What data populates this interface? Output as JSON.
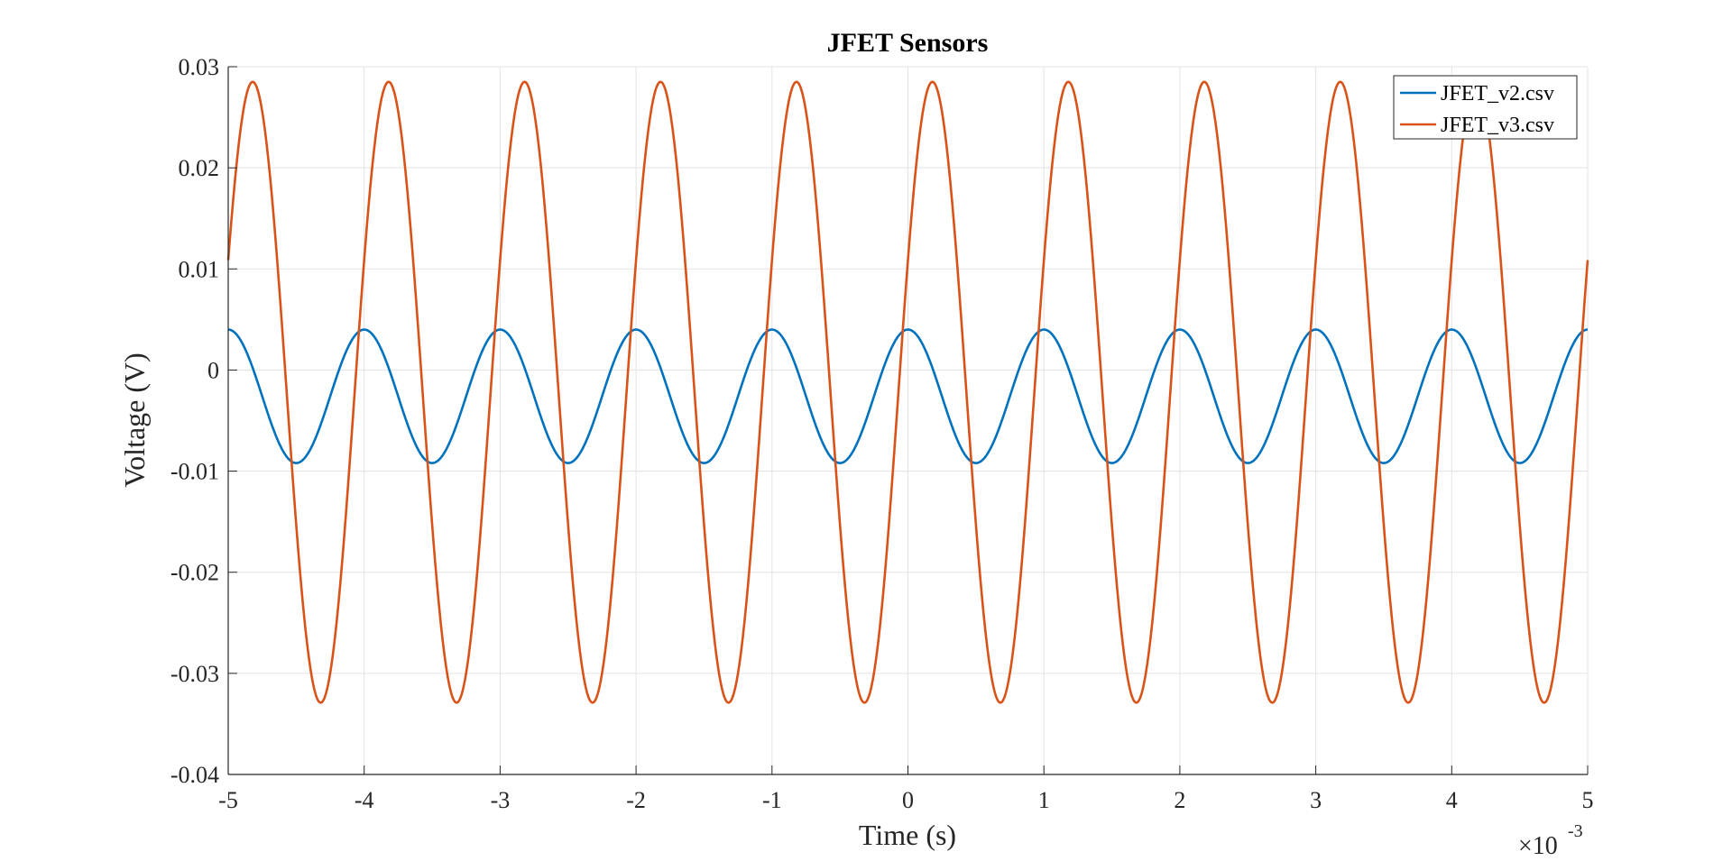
{
  "chart_data": {
    "type": "line",
    "title": "JFET Sensors",
    "xlabel": "Time (s)",
    "ylabel": "Voltage (V)",
    "xlim": [
      -5,
      5
    ],
    "ylim": [
      -0.04,
      0.03
    ],
    "x_multiplier_base": "×10",
    "x_multiplier_exponent": "-3",
    "xticks": [
      "-5",
      "-4",
      "-3",
      "-2",
      "-1",
      "0",
      "1",
      "2",
      "3",
      "4",
      "5"
    ],
    "yticks": [
      "0.03",
      "0.02",
      "0.01",
      "0",
      "-0.01",
      "-0.02",
      "-0.03",
      "-0.04"
    ],
    "grid": true,
    "legend_position": "top-right",
    "series": [
      {
        "name": "JFET_v2.csv",
        "color": "#0072BD",
        "frequency_khz": 1.0,
        "amplitude": 0.0066,
        "offset": -0.0026,
        "peak_time_ms": 0.0
      },
      {
        "name": "JFET_v3.csv",
        "color": "#D95319",
        "frequency_khz": 1.0,
        "amplitude": 0.0307,
        "offset": -0.0022,
        "peak_time_ms": 0.18
      }
    ]
  }
}
